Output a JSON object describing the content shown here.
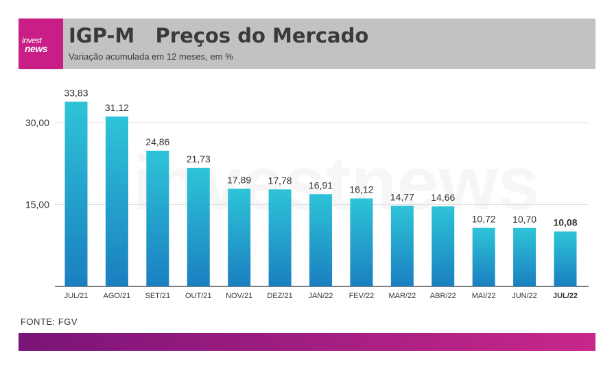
{
  "brand": {
    "logo_line1": "invest",
    "logo_line2": "news",
    "accent": "#c81e86"
  },
  "header": {
    "title": "IGP-M   Preços do Mercado",
    "subtitle": "Variação acumulada em 12 meses, em %"
  },
  "watermark": "investnews",
  "source": "FONTE: FGV",
  "chart_data": {
    "type": "bar",
    "categories": [
      "JUL/21",
      "AGO/21",
      "SET/21",
      "OUT/21",
      "NOV/21",
      "DEZ/21",
      "JAN/22",
      "FEV/22",
      "MAR/22",
      "ABR/22",
      "MAI/22",
      "JUN/22",
      "JUL/22"
    ],
    "values": [
      33.83,
      31.12,
      24.86,
      21.73,
      17.89,
      17.78,
      16.91,
      16.12,
      14.77,
      14.66,
      10.72,
      10.7,
      10.08
    ],
    "value_labels": [
      "33,83",
      "31,12",
      "24,86",
      "21,73",
      "17,89",
      "17,78",
      "16,91",
      "16,12",
      "14,77",
      "14,66",
      "10,72",
      "10,70",
      "10,08"
    ],
    "highlight_index": 12,
    "yticks": [
      15,
      30
    ],
    "ytick_labels": [
      "15,00",
      "30,00"
    ],
    "ylim": [
      0,
      35
    ],
    "grid": true,
    "bar_color_top": "#2ec4d8",
    "bar_color_bottom": "#1a7fc0"
  }
}
